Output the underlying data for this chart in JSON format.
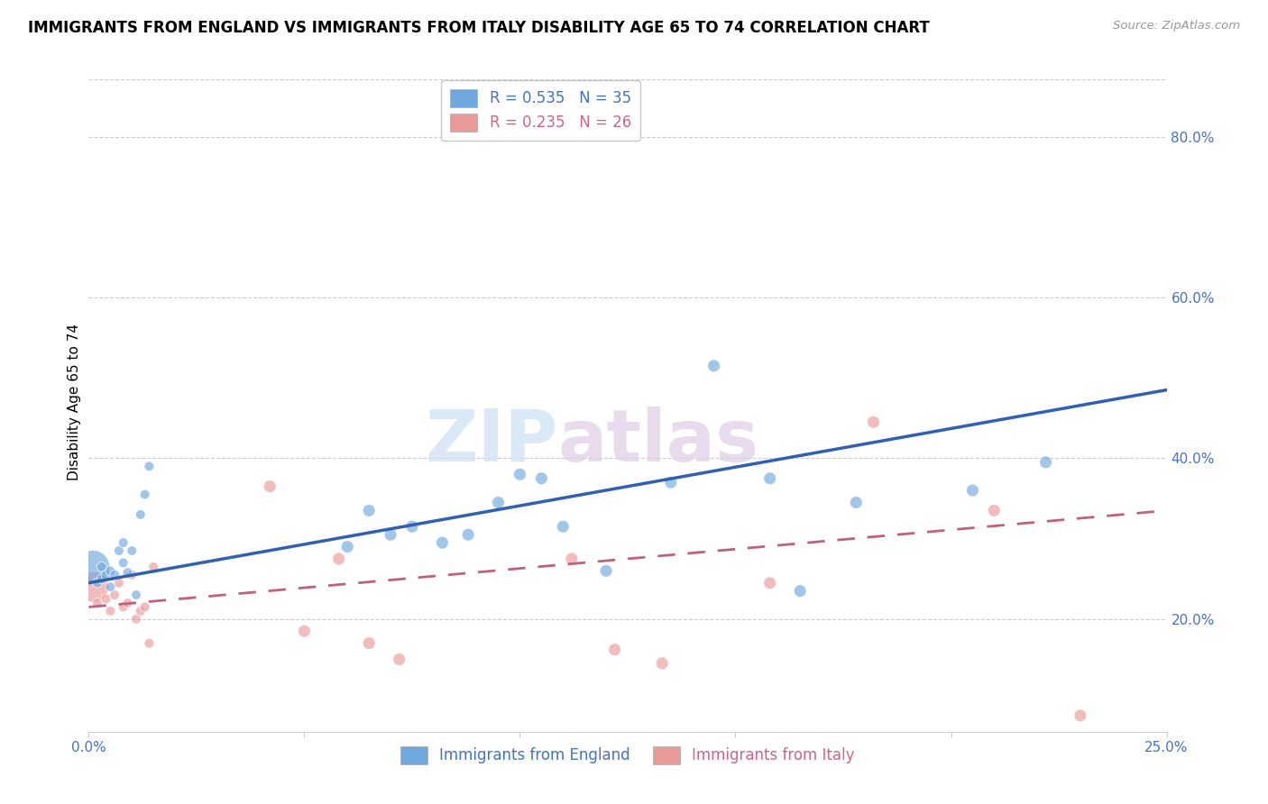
{
  "title": "IMMIGRANTS FROM ENGLAND VS IMMIGRANTS FROM ITALY DISABILITY AGE 65 TO 74 CORRELATION CHART",
  "source": "Source: ZipAtlas.com",
  "ylabel": "Disability Age 65 to 74",
  "xlim": [
    0.0,
    0.25
  ],
  "ylim": [
    0.06,
    0.88
  ],
  "england_R": 0.535,
  "england_N": 35,
  "italy_R": 0.235,
  "italy_N": 26,
  "england_color": "#6fa8dc",
  "italy_color": "#ea9999",
  "england_line_color": "#3060b0",
  "italy_line_color": "#c06080",
  "england_x": [
    0.001,
    0.002,
    0.003,
    0.003,
    0.004,
    0.005,
    0.005,
    0.006,
    0.007,
    0.008,
    0.008,
    0.009,
    0.01,
    0.011,
    0.012,
    0.013,
    0.014,
    0.06,
    0.065,
    0.07,
    0.075,
    0.082,
    0.088,
    0.095,
    0.1,
    0.105,
    0.11,
    0.12,
    0.135,
    0.145,
    0.158,
    0.165,
    0.178,
    0.205,
    0.222
  ],
  "england_y": [
    0.265,
    0.245,
    0.25,
    0.265,
    0.255,
    0.26,
    0.24,
    0.255,
    0.285,
    0.27,
    0.295,
    0.258,
    0.285,
    0.23,
    0.33,
    0.355,
    0.39,
    0.29,
    0.335,
    0.305,
    0.315,
    0.295,
    0.305,
    0.345,
    0.38,
    0.375,
    0.315,
    0.26,
    0.37,
    0.515,
    0.375,
    0.235,
    0.345,
    0.36,
    0.395
  ],
  "england_sizes": [
    700,
    60,
    60,
    60,
    60,
    60,
    60,
    60,
    60,
    60,
    60,
    60,
    60,
    60,
    60,
    60,
    60,
    100,
    100,
    100,
    100,
    100,
    100,
    100,
    100,
    100,
    100,
    100,
    100,
    100,
    100,
    100,
    100,
    100,
    100
  ],
  "italy_x": [
    0.001,
    0.002,
    0.004,
    0.005,
    0.006,
    0.007,
    0.008,
    0.009,
    0.01,
    0.011,
    0.012,
    0.013,
    0.014,
    0.015,
    0.042,
    0.05,
    0.058,
    0.065,
    0.072,
    0.112,
    0.122,
    0.133,
    0.158,
    0.182,
    0.21,
    0.23
  ],
  "italy_y": [
    0.24,
    0.22,
    0.225,
    0.21,
    0.23,
    0.245,
    0.215,
    0.22,
    0.255,
    0.2,
    0.21,
    0.215,
    0.17,
    0.265,
    0.365,
    0.185,
    0.275,
    0.17,
    0.15,
    0.275,
    0.162,
    0.145,
    0.245,
    0.445,
    0.335,
    0.08
  ],
  "italy_sizes": [
    600,
    60,
    60,
    60,
    60,
    60,
    60,
    60,
    60,
    60,
    60,
    60,
    60,
    60,
    100,
    100,
    100,
    100,
    100,
    100,
    100,
    100,
    100,
    100,
    100,
    100
  ],
  "england_trend_x": [
    0.0,
    0.25
  ],
  "england_trend_y": [
    0.245,
    0.485
  ],
  "italy_trend_x": [
    0.0,
    0.25
  ],
  "italy_trend_y": [
    0.215,
    0.335
  ],
  "yticks_right": [
    0.2,
    0.4,
    0.6,
    0.8
  ],
  "ytick_labels_right": [
    "20.0%",
    "40.0%",
    "60.0%",
    "80.0%"
  ]
}
